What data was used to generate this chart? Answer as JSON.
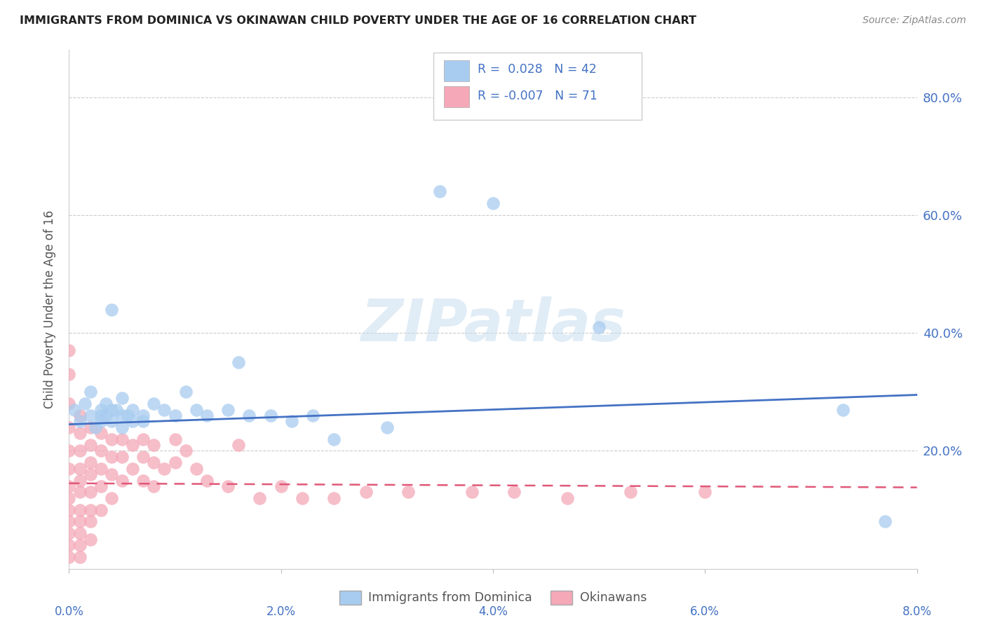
{
  "title": "IMMIGRANTS FROM DOMINICA VS OKINAWAN CHILD POVERTY UNDER THE AGE OF 16 CORRELATION CHART",
  "source": "Source: ZipAtlas.com",
  "ylabel": "Child Poverty Under the Age of 16",
  "ytick_vals": [
    0.8,
    0.6,
    0.4,
    0.2
  ],
  "xlim": [
    0.0,
    0.08
  ],
  "ylim": [
    0.0,
    0.88
  ],
  "blue_R": 0.028,
  "blue_N": 42,
  "pink_R": -0.007,
  "pink_N": 71,
  "blue_color": "#A8CCF0",
  "pink_color": "#F4A8B8",
  "blue_line_color": "#4472C4",
  "pink_line_color": "#E05878",
  "watermark": "ZIPatlas",
  "legend_blue_label": "Immigrants from Dominica",
  "legend_pink_label": "Okinawans",
  "blue_scatter_x": [
    0.0005,
    0.001,
    0.0015,
    0.002,
    0.002,
    0.0025,
    0.003,
    0.003,
    0.003,
    0.0035,
    0.0035,
    0.004,
    0.004,
    0.004,
    0.0045,
    0.005,
    0.005,
    0.005,
    0.0055,
    0.006,
    0.006,
    0.007,
    0.007,
    0.008,
    0.009,
    0.01,
    0.011,
    0.012,
    0.013,
    0.015,
    0.016,
    0.017,
    0.019,
    0.021,
    0.023,
    0.025,
    0.03,
    0.035,
    0.04,
    0.05,
    0.073,
    0.077
  ],
  "blue_scatter_y": [
    0.27,
    0.25,
    0.28,
    0.26,
    0.3,
    0.24,
    0.27,
    0.26,
    0.25,
    0.28,
    0.26,
    0.44,
    0.27,
    0.25,
    0.27,
    0.26,
    0.29,
    0.24,
    0.26,
    0.25,
    0.27,
    0.26,
    0.25,
    0.28,
    0.27,
    0.26,
    0.3,
    0.27,
    0.26,
    0.27,
    0.35,
    0.26,
    0.26,
    0.25,
    0.26,
    0.22,
    0.24,
    0.64,
    0.62,
    0.41,
    0.27,
    0.08
  ],
  "pink_scatter_x": [
    0.0,
    0.0,
    0.0,
    0.0,
    0.0,
    0.0,
    0.0,
    0.0,
    0.0,
    0.0,
    0.0,
    0.0,
    0.0,
    0.001,
    0.001,
    0.001,
    0.001,
    0.001,
    0.001,
    0.001,
    0.001,
    0.001,
    0.001,
    0.001,
    0.002,
    0.002,
    0.002,
    0.002,
    0.002,
    0.002,
    0.002,
    0.002,
    0.003,
    0.003,
    0.003,
    0.003,
    0.003,
    0.004,
    0.004,
    0.004,
    0.004,
    0.005,
    0.005,
    0.005,
    0.006,
    0.006,
    0.007,
    0.007,
    0.007,
    0.008,
    0.008,
    0.008,
    0.009,
    0.01,
    0.01,
    0.011,
    0.012,
    0.013,
    0.015,
    0.016,
    0.018,
    0.02,
    0.022,
    0.025,
    0.028,
    0.032,
    0.038,
    0.042,
    0.047,
    0.053,
    0.06
  ],
  "pink_scatter_y": [
    0.37,
    0.33,
    0.28,
    0.24,
    0.2,
    0.17,
    0.14,
    0.12,
    0.1,
    0.08,
    0.06,
    0.04,
    0.02,
    0.26,
    0.23,
    0.2,
    0.17,
    0.15,
    0.13,
    0.1,
    0.08,
    0.06,
    0.04,
    0.02,
    0.24,
    0.21,
    0.18,
    0.16,
    0.13,
    0.1,
    0.08,
    0.05,
    0.23,
    0.2,
    0.17,
    0.14,
    0.1,
    0.22,
    0.19,
    0.16,
    0.12,
    0.22,
    0.19,
    0.15,
    0.21,
    0.17,
    0.22,
    0.19,
    0.15,
    0.21,
    0.18,
    0.14,
    0.17,
    0.22,
    0.18,
    0.2,
    0.17,
    0.15,
    0.14,
    0.21,
    0.12,
    0.14,
    0.12,
    0.12,
    0.13,
    0.13,
    0.13,
    0.13,
    0.12,
    0.13,
    0.13
  ],
  "blue_trend_x": [
    0.0,
    0.08
  ],
  "blue_trend_y": [
    0.245,
    0.295
  ],
  "pink_trend_x": [
    0.0,
    0.08
  ],
  "pink_trend_y": [
    0.145,
    0.138
  ]
}
